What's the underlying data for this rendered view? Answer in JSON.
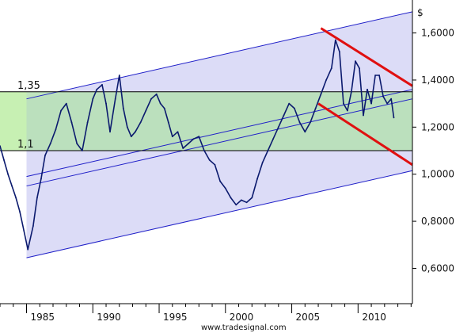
{
  "chart_data": {
    "type": "line",
    "y_unit_label": "$",
    "watermark": "www.tradesignal.com",
    "xlim": [
      1983.0,
      2014.1
    ],
    "ylim": [
      0.45,
      1.74
    ],
    "x_ticks": [
      1985,
      1990,
      1995,
      2000,
      2005,
      2010
    ],
    "y_ticks": [
      {
        "value": 0.6,
        "label": "0,6000"
      },
      {
        "value": 0.8,
        "label": "0,8000"
      },
      {
        "value": 1.0,
        "label": "1,0000"
      },
      {
        "value": 1.2,
        "label": "1,2000"
      },
      {
        "value": 1.4,
        "label": "1,4000"
      },
      {
        "value": 1.6,
        "label": "1,6000"
      }
    ],
    "levels": [
      {
        "value": 1.35,
        "label": "1,35"
      },
      {
        "value": 1.1,
        "label": "1,1"
      }
    ],
    "band": {
      "from": 1.1,
      "to": 1.35,
      "color": "#b5e0b3",
      "highlight_until": 1985.0,
      "highlight_color": "#c7f0b3"
    },
    "channel": {
      "upper": [
        [
          1985.0,
          1.32
        ],
        [
          2014.1,
          1.69
        ]
      ],
      "lower": [
        [
          1985.0,
          0.645
        ],
        [
          2014.1,
          1.015
        ]
      ],
      "fill": "#dcdcf7",
      "line_color": "#1f1fc8",
      "inner_lines": [
        [
          [
            1985.0,
            0.99
          ],
          [
            2014.1,
            1.36
          ]
        ],
        [
          [
            1985.0,
            0.95
          ],
          [
            2014.1,
            1.32
          ]
        ]
      ]
    },
    "trend_lines": [
      {
        "points": [
          [
            2007.2,
            1.62
          ],
          [
            2014.1,
            1.375
          ]
        ],
        "color": "#e01010"
      },
      {
        "points": [
          [
            2007.0,
            1.3
          ],
          [
            2014.1,
            1.04
          ]
        ],
        "color": "#e01010"
      }
    ],
    "series": [
      {
        "color": "#0b1a6e",
        "x": [
          1983.0,
          1983.3,
          1983.6,
          1983.9,
          1984.2,
          1984.5,
          1984.8,
          1985.1,
          1985.5,
          1985.8,
          1986.1,
          1986.4,
          1986.8,
          1987.2,
          1987.6,
          1988.0,
          1988.4,
          1988.8,
          1989.2,
          1989.6,
          1990.0,
          1990.3,
          1990.7,
          1991.0,
          1991.3,
          1991.7,
          1992.0,
          1992.3,
          1992.6,
          1992.9,
          1993.2,
          1993.6,
          1994.0,
          1994.4,
          1994.8,
          1995.1,
          1995.4,
          1995.7,
          1996.0,
          1996.4,
          1996.8,
          1997.2,
          1997.6,
          1998.0,
          1998.4,
          1998.8,
          1999.2,
          1999.6,
          2000.0,
          2000.4,
          2000.8,
          2001.2,
          2001.6,
          2002.0,
          2002.4,
          2002.8,
          2003.2,
          2003.6,
          2004.0,
          2004.4,
          2004.8,
          2005.2,
          2005.6,
          2006.0,
          2006.4,
          2006.8,
          2007.2,
          2007.6,
          2008.0,
          2008.3,
          2008.6,
          2008.9,
          2009.2,
          2009.5,
          2009.8,
          2010.1,
          2010.4,
          2010.7,
          2011.0,
          2011.3,
          2011.6,
          2011.9,
          2012.2,
          2012.5,
          2012.7
        ],
        "y": [
          1.12,
          1.06,
          1.0,
          0.95,
          0.9,
          0.84,
          0.76,
          0.68,
          0.78,
          0.9,
          0.98,
          1.08,
          1.13,
          1.19,
          1.27,
          1.3,
          1.22,
          1.13,
          1.1,
          1.22,
          1.32,
          1.36,
          1.38,
          1.3,
          1.18,
          1.32,
          1.42,
          1.28,
          1.2,
          1.16,
          1.18,
          1.22,
          1.27,
          1.32,
          1.34,
          1.3,
          1.28,
          1.22,
          1.16,
          1.18,
          1.11,
          1.13,
          1.15,
          1.16,
          1.1,
          1.06,
          1.04,
          0.97,
          0.94,
          0.9,
          0.87,
          0.89,
          0.88,
          0.9,
          0.98,
          1.05,
          1.1,
          1.15,
          1.2,
          1.25,
          1.3,
          1.28,
          1.22,
          1.18,
          1.22,
          1.28,
          1.34,
          1.4,
          1.45,
          1.57,
          1.52,
          1.3,
          1.27,
          1.35,
          1.48,
          1.45,
          1.25,
          1.36,
          1.3,
          1.42,
          1.42,
          1.33,
          1.3,
          1.32,
          1.24
        ]
      }
    ]
  }
}
